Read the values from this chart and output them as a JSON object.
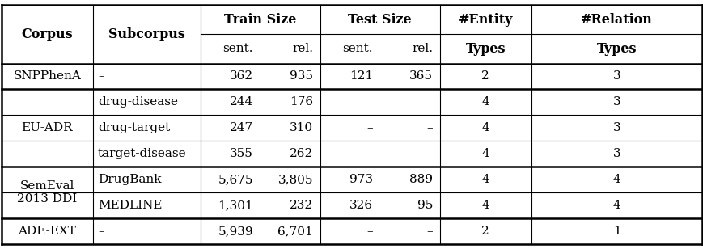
{
  "fig_width": 8.7,
  "fig_height": 3.08,
  "dpi": 100,
  "rows": [
    {
      "corpus_label": "SNPPhenA",
      "corpus_rows": [
        0
      ],
      "subcorpus": "–",
      "train_sent": "362",
      "train_rel": "935",
      "test_sent": "121",
      "test_rel": "365",
      "entity_types": "2",
      "relation_types": "3"
    },
    {
      "corpus_label": "",
      "corpus_rows": [],
      "subcorpus": "drug-disease",
      "train_sent": "244",
      "train_rel": "176",
      "test_sent": "",
      "test_rel": "",
      "entity_types": "4",
      "relation_types": "3"
    },
    {
      "corpus_label": "EU-ADR",
      "corpus_rows": [
        1,
        2,
        3
      ],
      "subcorpus": "drug-target",
      "train_sent": "247",
      "train_rel": "310",
      "test_sent": "–",
      "test_rel": "–",
      "entity_types": "4",
      "relation_types": "3"
    },
    {
      "corpus_label": "",
      "corpus_rows": [],
      "subcorpus": "target-disease",
      "train_sent": "355",
      "train_rel": "262",
      "test_sent": "",
      "test_rel": "",
      "entity_types": "4",
      "relation_types": "3"
    },
    {
      "corpus_label": "SemEval",
      "corpus_rows": [
        4,
        5
      ],
      "subcorpus": "DrugBank",
      "train_sent": "5,675",
      "train_rel": "3,805",
      "test_sent": "973",
      "test_rel": "889",
      "entity_types": "4",
      "relation_types": "4"
    },
    {
      "corpus_label": "2013 DDI",
      "corpus_rows": [],
      "subcorpus": "MEDLINE",
      "train_sent": "1,301",
      "train_rel": "232",
      "test_sent": "326",
      "test_rel": "95",
      "entity_types": "4",
      "relation_types": "4"
    },
    {
      "corpus_label": "ADE-EXT",
      "corpus_rows": [
        6
      ],
      "subcorpus": "–",
      "train_sent": "5,939",
      "train_rel": "6,701",
      "test_sent": "–",
      "test_rel": "–",
      "entity_types": "2",
      "relation_types": "1"
    }
  ],
  "corpus_groups": [
    {
      "label": "SNPPhenA",
      "rows": [
        0
      ]
    },
    {
      "label": "EU-ADR",
      "rows": [
        1,
        2,
        3
      ]
    },
    {
      "label": "SemEval\n2013 DDI",
      "rows": [
        4,
        5
      ]
    },
    {
      "label": "ADE-EXT",
      "rows": [
        6
      ]
    }
  ],
  "background_color": "#ffffff",
  "text_color": "#000000",
  "line_color": "#000000",
  "header_font_size": 11.5,
  "body_font_size": 11.0,
  "vsep": [
    0.132,
    0.285,
    0.455,
    0.625,
    0.755
  ],
  "group_ends": [
    0,
    3,
    5,
    6
  ]
}
